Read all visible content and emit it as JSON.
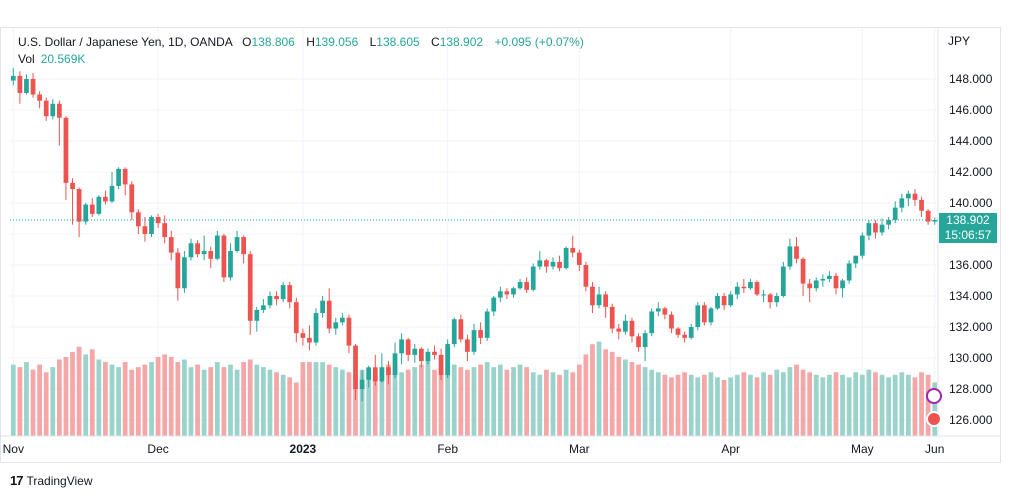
{
  "header": {
    "symbol_title": "U.S. Dollar / Japanese Yen, 1D, OANDA",
    "open_key": "O",
    "open_value": "138.806",
    "high_key": "H",
    "high_value": "139.056",
    "low_key": "L",
    "low_value": "138.605",
    "close_key": "C",
    "close_value": "138.902",
    "change": "+0.095 (+0.07%)",
    "vol_label": "Vol",
    "vol_value": "20.569K"
  },
  "price_axis": {
    "currency": "JPY"
  },
  "last_price": {
    "price": "138.902",
    "countdown": "15:06:57"
  },
  "footer": {
    "brand_logo": "17",
    "brand_name": "TradingView"
  },
  "colors": {
    "up": "#26a69a",
    "down": "#ef5350",
    "vol_up": "#9ad3cb",
    "vol_down": "#f5a6a6",
    "grid": "#f0f3fa"
  },
  "chart_data": {
    "type": "candlestick",
    "title": "U.S. Dollar / Japanese Yen, 1D, OANDA",
    "y_axis": {
      "ticks": [
        "126.000",
        "128.000",
        "130.000",
        "132.000",
        "134.000",
        "136.000",
        "138.000",
        "140.000",
        "142.000",
        "144.000",
        "146.000",
        "148.000"
      ],
      "range": [
        125.5,
        149.5
      ],
      "side": "right"
    },
    "x_axis": {
      "ticks": [
        "Nov",
        "Dec",
        "2023",
        "Feb",
        "Mar",
        "Apr",
        "May",
        "Jun"
      ],
      "tick_dates": [
        "2022-11-01",
        "2022-12-01",
        "2023-01-01",
        "2023-02-01",
        "2023-03-01",
        "2023-04-01",
        "2023-05-01",
        "2023-06-01"
      ]
    },
    "start_date": "2022-11-01",
    "ohlc": [
      [
        147.9,
        148.7,
        147.6,
        148.2
      ],
      [
        148.2,
        148.5,
        146.4,
        147.1
      ],
      [
        147.1,
        148.3,
        147.0,
        148.0
      ],
      [
        148.0,
        148.4,
        146.8,
        147.0
      ],
      [
        147.0,
        147.2,
        146.1,
        146.6
      ],
      [
        146.6,
        146.8,
        145.3,
        145.6
      ],
      [
        145.6,
        146.7,
        145.4,
        146.4
      ],
      [
        146.4,
        146.6,
        143.7,
        145.5
      ],
      [
        145.5,
        145.6,
        140.2,
        141.3
      ],
      [
        141.3,
        141.6,
        138.6,
        140.9
      ],
      [
        140.9,
        141.0,
        137.8,
        138.8
      ],
      [
        138.8,
        140.0,
        138.6,
        139.9
      ],
      [
        139.9,
        140.3,
        139.1,
        139.3
      ],
      [
        139.3,
        140.5,
        139.2,
        140.4
      ],
      [
        140.4,
        140.8,
        139.9,
        140.1
      ],
      [
        140.1,
        142.0,
        140.0,
        141.1
      ],
      [
        141.1,
        142.3,
        140.9,
        142.2
      ],
      [
        142.2,
        142.3,
        140.5,
        141.2
      ],
      [
        141.2,
        141.4,
        138.9,
        139.4
      ],
      [
        139.4,
        139.6,
        138.0,
        138.5
      ],
      [
        138.5,
        139.1,
        137.5,
        138.0
      ],
      [
        138.0,
        139.2,
        137.8,
        139.1
      ],
      [
        139.1,
        139.3,
        138.4,
        138.7
      ],
      [
        138.7,
        139.2,
        137.4,
        137.8
      ],
      [
        137.8,
        138.2,
        136.3,
        136.8
      ],
      [
        136.8,
        137.1,
        133.7,
        134.5
      ],
      [
        134.5,
        136.9,
        134.2,
        136.5
      ],
      [
        136.5,
        137.7,
        136.3,
        137.4
      ],
      [
        137.4,
        137.6,
        136.5,
        136.7
      ],
      [
        136.7,
        137.9,
        136.3,
        136.9
      ],
      [
        136.9,
        137.2,
        135.8,
        136.4
      ],
      [
        136.4,
        138.2,
        136.3,
        137.9
      ],
      [
        137.9,
        138.0,
        134.9,
        135.2
      ],
      [
        135.2,
        137.4,
        135.0,
        136.9
      ],
      [
        136.9,
        138.2,
        136.8,
        137.8
      ],
      [
        137.8,
        137.9,
        136.1,
        136.7
      ],
      [
        136.7,
        136.9,
        131.5,
        132.4
      ],
      [
        132.4,
        133.3,
        131.7,
        133.1
      ],
      [
        133.1,
        133.8,
        132.9,
        133.4
      ],
      [
        133.4,
        134.3,
        133.2,
        134.0
      ],
      [
        134.0,
        134.3,
        133.4,
        133.8
      ],
      [
        133.8,
        134.9,
        133.6,
        134.7
      ],
      [
        134.7,
        134.9,
        133.2,
        133.6
      ],
      [
        133.6,
        133.9,
        131.0,
        131.6
      ],
      [
        131.6,
        131.9,
        130.8,
        131.3
      ],
      [
        131.3,
        132.1,
        130.5,
        131.0
      ],
      [
        131.0,
        133.2,
        130.8,
        132.9
      ],
      [
        132.9,
        134.0,
        132.6,
        133.7
      ],
      [
        133.7,
        134.5,
        131.6,
        131.9
      ],
      [
        131.9,
        132.6,
        131.5,
        132.3
      ],
      [
        132.3,
        132.9,
        132.1,
        132.6
      ],
      [
        132.6,
        132.8,
        130.3,
        130.8
      ],
      [
        130.8,
        130.9,
        127.3,
        128.0
      ],
      [
        128.0,
        129.2,
        127.2,
        128.6
      ],
      [
        128.6,
        129.5,
        128.1,
        129.4
      ],
      [
        129.4,
        130.2,
        128.2,
        128.5
      ],
      [
        128.5,
        130.3,
        128.4,
        129.4
      ],
      [
        129.4,
        129.8,
        128.3,
        128.9
      ],
      [
        128.9,
        131.0,
        128.7,
        130.3
      ],
      [
        130.3,
        131.6,
        129.6,
        131.2
      ],
      [
        131.2,
        131.3,
        129.8,
        130.2
      ],
      [
        130.2,
        130.9,
        129.7,
        130.6
      ],
      [
        130.6,
        130.7,
        129.4,
        129.8
      ],
      [
        129.8,
        130.6,
        129.6,
        130.4
      ],
      [
        130.4,
        130.8,
        129.9,
        130.2
      ],
      [
        130.2,
        130.6,
        128.6,
        128.9
      ],
      [
        128.9,
        131.2,
        128.7,
        130.9
      ],
      [
        130.9,
        132.6,
        130.7,
        132.5
      ],
      [
        132.5,
        132.8,
        131.0,
        131.2
      ],
      [
        131.2,
        131.5,
        129.8,
        130.4
      ],
      [
        130.4,
        132.2,
        130.2,
        131.8
      ],
      [
        131.8,
        132.3,
        130.9,
        131.3
      ],
      [
        131.3,
        133.2,
        131.1,
        133.0
      ],
      [
        133.0,
        134.0,
        132.7,
        133.9
      ],
      [
        133.9,
        134.6,
        133.6,
        134.3
      ],
      [
        134.3,
        134.5,
        133.8,
        134.1
      ],
      [
        134.1,
        134.6,
        133.9,
        134.5
      ],
      [
        134.5,
        135.1,
        134.4,
        134.9
      ],
      [
        134.9,
        135.2,
        134.2,
        134.4
      ],
      [
        134.4,
        136.1,
        134.3,
        135.9
      ],
      [
        135.9,
        136.9,
        135.7,
        136.3
      ],
      [
        136.3,
        136.4,
        135.5,
        135.9
      ],
      [
        135.9,
        136.5,
        135.7,
        136.2
      ],
      [
        136.2,
        136.6,
        135.6,
        135.8
      ],
      [
        135.8,
        137.2,
        135.7,
        137.1
      ],
      [
        137.1,
        137.9,
        136.5,
        136.8
      ],
      [
        136.8,
        137.0,
        135.6,
        136.0
      ],
      [
        136.0,
        136.2,
        134.3,
        134.6
      ],
      [
        134.6,
        134.9,
        132.9,
        133.4
      ],
      [
        133.4,
        134.6,
        133.2,
        134.1
      ],
      [
        134.1,
        134.3,
        132.6,
        133.3
      ],
      [
        133.3,
        133.5,
        131.6,
        131.9
      ],
      [
        131.9,
        132.2,
        131.2,
        131.7
      ],
      [
        131.7,
        132.8,
        131.5,
        132.4
      ],
      [
        132.4,
        132.6,
        131.0,
        131.4
      ],
      [
        131.4,
        131.6,
        130.4,
        130.7
      ],
      [
        130.7,
        131.8,
        129.8,
        131.6
      ],
      [
        131.6,
        133.2,
        131.4,
        133.0
      ],
      [
        133.0,
        133.6,
        132.7,
        133.2
      ],
      [
        133.2,
        133.3,
        132.5,
        132.8
      ],
      [
        132.8,
        133.0,
        131.6,
        131.9
      ],
      [
        131.9,
        132.0,
        131.3,
        131.5
      ],
      [
        131.5,
        131.7,
        131.0,
        131.3
      ],
      [
        131.3,
        132.2,
        131.2,
        132.0
      ],
      [
        132.0,
        133.6,
        131.8,
        133.4
      ],
      [
        133.4,
        133.6,
        132.1,
        132.3
      ],
      [
        132.3,
        133.3,
        132.1,
        133.2
      ],
      [
        133.2,
        134.2,
        133.1,
        134.0
      ],
      [
        134.0,
        134.2,
        133.1,
        133.4
      ],
      [
        133.4,
        134.3,
        133.3,
        134.1
      ],
      [
        134.1,
        134.9,
        133.8,
        134.6
      ],
      [
        134.6,
        135.1,
        134.2,
        134.5
      ],
      [
        134.5,
        135.1,
        134.4,
        134.9
      ],
      [
        134.9,
        135.0,
        134.0,
        134.1
      ],
      [
        134.1,
        134.4,
        133.6,
        134.1
      ],
      [
        134.1,
        134.2,
        133.2,
        133.6
      ],
      [
        133.6,
        134.2,
        133.3,
        134.0
      ],
      [
        134.0,
        136.2,
        133.9,
        135.9
      ],
      [
        135.9,
        137.7,
        135.7,
        137.2
      ],
      [
        137.2,
        137.8,
        136.1,
        136.4
      ],
      [
        136.4,
        136.5,
        134.0,
        134.8
      ],
      [
        134.8,
        135.1,
        133.6,
        134.5
      ],
      [
        134.5,
        135.2,
        134.3,
        135.0
      ],
      [
        135.0,
        135.4,
        134.6,
        135.1
      ],
      [
        135.1,
        135.6,
        134.9,
        135.3
      ],
      [
        135.3,
        135.5,
        134.1,
        134.5
      ],
      [
        134.5,
        135.1,
        133.9,
        135.0
      ],
      [
        135.0,
        136.3,
        134.8,
        136.1
      ],
      [
        136.1,
        136.6,
        135.8,
        136.6
      ],
      [
        136.6,
        138.1,
        136.4,
        137.9
      ],
      [
        137.9,
        138.9,
        137.6,
        138.7
      ],
      [
        138.7,
        138.9,
        137.7,
        138.1
      ],
      [
        138.1,
        139.0,
        137.9,
        138.6
      ],
      [
        138.6,
        139.1,
        138.3,
        138.9
      ],
      [
        138.9,
        140.1,
        138.7,
        139.7
      ],
      [
        139.7,
        140.6,
        139.4,
        140.3
      ],
      [
        140.3,
        140.8,
        139.8,
        140.6
      ],
      [
        140.6,
        140.9,
        139.8,
        140.2
      ],
      [
        140.2,
        140.4,
        139.1,
        139.5
      ],
      [
        139.5,
        139.6,
        138.6,
        138.8
      ],
      [
        138.806,
        139.056,
        138.605,
        138.902
      ]
    ],
    "volume": [
      28,
      27,
      29,
      26,
      28,
      25,
      27,
      30,
      31,
      33,
      35,
      32,
      34,
      30,
      29,
      28,
      27,
      29,
      26,
      27,
      28,
      29,
      31,
      32,
      31,
      29,
      30,
      27,
      28,
      26,
      27,
      29,
      27,
      28,
      26,
      29,
      30,
      28,
      27,
      26,
      25,
      24,
      23,
      21,
      29,
      29,
      29,
      29,
      28,
      27,
      26,
      25,
      24,
      26,
      25,
      24,
      27,
      28,
      27,
      25,
      26,
      27,
      28,
      30,
      26,
      27,
      29,
      28,
      27,
      26,
      27,
      28,
      29,
      27,
      28,
      26,
      27,
      28,
      27,
      25,
      24,
      26,
      25,
      24,
      26,
      25,
      28,
      32,
      36,
      37,
      34,
      33,
      31,
      30,
      29,
      28,
      27,
      26,
      25,
      24,
      23,
      24,
      25,
      24,
      23,
      24,
      25,
      23,
      22,
      23,
      24,
      25,
      24,
      23,
      25,
      24,
      26,
      25,
      27,
      28,
      26,
      25,
      24,
      23,
      24,
      25,
      24,
      23,
      25,
      24,
      26,
      25,
      24,
      23,
      24,
      25,
      24,
      23,
      25,
      24,
      21
    ],
    "volume_last": "20.569K",
    "last_price": 138.902
  }
}
